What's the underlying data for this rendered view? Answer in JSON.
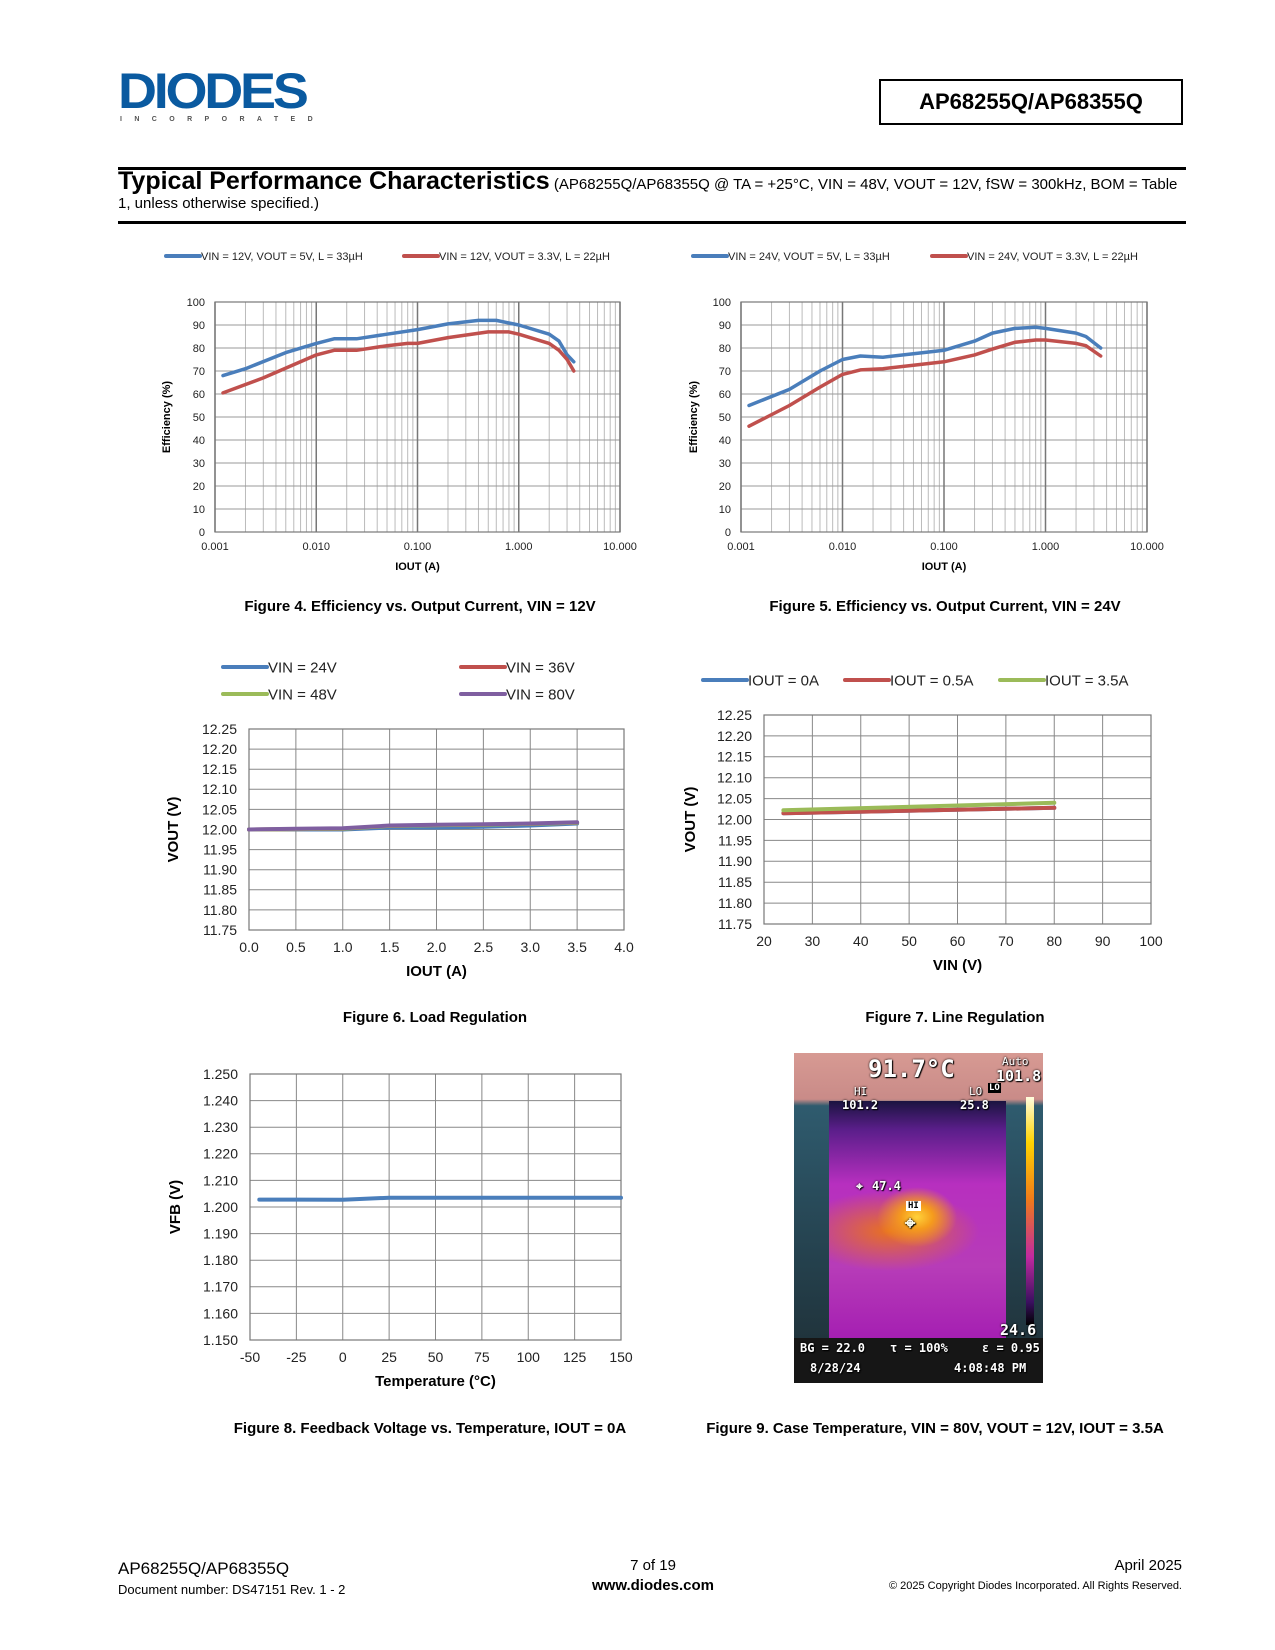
{
  "header": {
    "logo_text": "DIODES",
    "logo_subtext": "INCORPORATED",
    "part_number": "AP68255Q/AP68355Q"
  },
  "section": {
    "title": "Typical Performance Characteristics",
    "conditions": "(AP68255Q/AP68355Q @ TA = +25°C, VIN = 48V, VOUT = 12V, fSW = 300kHz, BOM = Table 1, unless otherwise specified.)"
  },
  "colors": {
    "blue": "#4a7ebb",
    "red": "#c0504d",
    "green": "#9bbb59",
    "purple": "#7f5fa0",
    "logo": "#0a5aa0"
  },
  "chart_data": [
    {
      "id": "fig4",
      "type": "line",
      "caption": "Figure 4. Efficiency vs. Output Current, VIN = 12V",
      "xlabel": "IOUT (A)",
      "ylabel": "Efficiency (%)",
      "xscale": "log",
      "xlim": [
        0.001,
        10
      ],
      "ylim": [
        0,
        100
      ],
      "xticks": [
        "0.001",
        "0.010",
        "0.100",
        "1.000",
        "10.000"
      ],
      "yticks": [
        "0",
        "10",
        "20",
        "30",
        "40",
        "50",
        "60",
        "70",
        "80",
        "90",
        "100"
      ],
      "grid": true,
      "legend": "top",
      "series": [
        {
          "name": "VIN = 12V, VOUT = 5V, L = 33µH",
          "color": "#4a7ebb",
          "x": [
            0.0012,
            0.002,
            0.005,
            0.01,
            0.015,
            0.025,
            0.05,
            0.1,
            0.2,
            0.4,
            0.6,
            1.0,
            2.0,
            2.5,
            3.0,
            3.5
          ],
          "y": [
            68,
            71,
            78,
            82,
            84,
            84,
            86,
            88,
            90.5,
            92,
            92,
            90,
            86,
            83,
            77,
            74
          ]
        },
        {
          "name": "VIN = 12V, VOUT = 3.3V, L = 22µH",
          "color": "#c0504d",
          "x": [
            0.0012,
            0.003,
            0.01,
            0.015,
            0.025,
            0.05,
            0.08,
            0.1,
            0.2,
            0.5,
            0.8,
            1.0,
            2.0,
            2.5,
            3.0,
            3.5
          ],
          "y": [
            60.5,
            67,
            77,
            79,
            79,
            81,
            82,
            82,
            84.5,
            87,
            87,
            86,
            82,
            79,
            75,
            70
          ]
        }
      ]
    },
    {
      "id": "fig5",
      "type": "line",
      "caption": "Figure 5. Efficiency vs. Output Current, VIN = 24V",
      "xlabel": "IOUT (A)",
      "ylabel": "Efficiency (%)",
      "xscale": "log",
      "xlim": [
        0.001,
        10
      ],
      "ylim": [
        0,
        100
      ],
      "xticks": [
        "0.001",
        "0.010",
        "0.100",
        "1.000",
        "10.000"
      ],
      "yticks": [
        "0",
        "10",
        "20",
        "30",
        "40",
        "50",
        "60",
        "70",
        "80",
        "90",
        "100"
      ],
      "grid": true,
      "legend": "top",
      "series": [
        {
          "name": "VIN = 24V, VOUT = 5V, L = 33µH",
          "color": "#4a7ebb",
          "x": [
            0.0012,
            0.003,
            0.006,
            0.01,
            0.015,
            0.025,
            0.05,
            0.1,
            0.2,
            0.3,
            0.5,
            0.8,
            1.0,
            2.0,
            2.5,
            3.5
          ],
          "y": [
            55,
            62,
            70,
            75,
            76.5,
            76,
            77.5,
            79,
            83,
            86.5,
            88.5,
            89,
            88.5,
            86.5,
            85,
            80
          ]
        },
        {
          "name": "VIN = 24V, VOUT = 3.3V, L = 22µH",
          "color": "#c0504d",
          "x": [
            0.0012,
            0.003,
            0.006,
            0.01,
            0.015,
            0.025,
            0.05,
            0.1,
            0.2,
            0.3,
            0.5,
            0.8,
            1.0,
            2.0,
            2.5,
            3.5
          ],
          "y": [
            46,
            55,
            63,
            68.5,
            70.5,
            71,
            72.5,
            74,
            77,
            79.5,
            82.5,
            83.5,
            83.5,
            82,
            81,
            76.5
          ]
        }
      ]
    },
    {
      "id": "fig6",
      "type": "line",
      "caption": "Figure 6. Load Regulation",
      "xlabel": "IOUT (A)",
      "ylabel": "VOUT (V)",
      "xscale": "linear",
      "xlim": [
        0,
        4
      ],
      "ylim": [
        11.75,
        12.25
      ],
      "xticks": [
        "0.0",
        "0.5",
        "1.0",
        "1.5",
        "2.0",
        "2.5",
        "3.0",
        "3.5",
        "4.0"
      ],
      "yticks": [
        "11.75",
        "11.80",
        "11.85",
        "11.90",
        "11.95",
        "12.00",
        "12.05",
        "12.10",
        "12.15",
        "12.20",
        "12.25"
      ],
      "grid": true,
      "legend": "top",
      "series": [
        {
          "name": "VIN = 24V",
          "color": "#4a7ebb",
          "x": [
            0,
            0.5,
            1,
            1.5,
            2,
            2.5,
            3,
            3.5
          ],
          "y": [
            12.0,
            12.0,
            12.0,
            12.005,
            12.005,
            12.007,
            12.01,
            12.015
          ]
        },
        {
          "name": "VIN = 36V",
          "color": "#c0504d",
          "x": [
            0,
            0.5,
            1,
            1.5,
            2,
            2.5,
            3,
            3.5
          ],
          "y": [
            12.0,
            12.001,
            12.002,
            12.009,
            12.011,
            12.012,
            12.014,
            12.017
          ]
        },
        {
          "name": "VIN = 48V",
          "color": "#9bbb59",
          "x": [
            0,
            0.5,
            1,
            1.5,
            2,
            2.5,
            3,
            3.5
          ],
          "y": [
            12.0,
            12.001,
            12.002,
            12.009,
            12.011,
            12.012,
            12.014,
            12.017
          ]
        },
        {
          "name": "VIN = 80V",
          "color": "#7f5fa0",
          "x": [
            0,
            0.5,
            1,
            1.5,
            2,
            2.5,
            3,
            3.5
          ],
          "y": [
            12.0,
            12.002,
            12.003,
            12.01,
            12.012,
            12.013,
            12.015,
            12.018
          ]
        }
      ]
    },
    {
      "id": "fig7",
      "type": "line",
      "caption": "Figure 7. Line Regulation",
      "xlabel": "VIN (V)",
      "ylabel": "VOUT (V)",
      "xscale": "linear",
      "xlim": [
        20,
        100
      ],
      "ylim": [
        11.75,
        12.25
      ],
      "xticks": [
        "20",
        "30",
        "40",
        "50",
        "60",
        "70",
        "80",
        "90",
        "100"
      ],
      "yticks": [
        "11.75",
        "11.80",
        "11.85",
        "11.90",
        "11.95",
        "12.00",
        "12.05",
        "12.10",
        "12.15",
        "12.20",
        "12.25"
      ],
      "grid": true,
      "legend": "top",
      "series": [
        {
          "name": "IOUT = 0A",
          "color": "#4a7ebb",
          "x": [
            24,
            80
          ],
          "y": [
            12.015,
            12.028
          ]
        },
        {
          "name": "IOUT = 0.5A",
          "color": "#c0504d",
          "x": [
            24,
            80
          ],
          "y": [
            12.015,
            12.028
          ]
        },
        {
          "name": "IOUT = 3.5A",
          "color": "#9bbb59",
          "x": [
            24,
            80
          ],
          "y": [
            12.022,
            12.04
          ]
        }
      ]
    },
    {
      "id": "fig8",
      "type": "line",
      "caption": "Figure 8. Feedback Voltage vs. Temperature, IOUT = 0A",
      "xlabel": "Temperature (°C)",
      "ylabel": "VFB (V)",
      "xscale": "linear",
      "xlim": [
        -50,
        150
      ],
      "ylim": [
        1.15,
        1.25
      ],
      "xticks": [
        "-50",
        "-25",
        "0",
        "25",
        "50",
        "75",
        "100",
        "125",
        "150"
      ],
      "yticks": [
        "1.150",
        "1.160",
        "1.170",
        "1.180",
        "1.190",
        "1.200",
        "1.210",
        "1.220",
        "1.230",
        "1.240",
        "1.250"
      ],
      "grid": true,
      "legend": "none",
      "series": [
        {
          "color": "#4a7ebb",
          "x": [
            -45,
            -25,
            0,
            25,
            50,
            75,
            100,
            125,
            150
          ],
          "y": [
            1.2028,
            1.2028,
            1.2027,
            1.2035,
            1.2035,
            1.2035,
            1.2035,
            1.2035,
            1.2035
          ]
        }
      ]
    }
  ],
  "thermal_image": {
    "caption": "Figure 9. Case Temperature, VIN = 80V, VOUT = 12V, IOUT = 3.5A",
    "center_temp": "91.7°C",
    "mode": "Auto",
    "scale_max": "101.8",
    "scale_min": "24.6",
    "hi_label": "HI",
    "hi_value": "101.2",
    "lo_label": "LO",
    "lo_value": "25.8",
    "marker_value": "47.4",
    "hi_marker": "HI",
    "lo_marker": "LO",
    "bg": "BG = 22.0",
    "tau": "τ = 100%",
    "emissivity": "ε = 0.95",
    "date": "8/28/24",
    "time": "4:08:48 PM"
  },
  "footer": {
    "part": "AP68255Q/AP68355Q",
    "doc_number": "Document number: DS47151 Rev. 1 - 2",
    "page": "7 of 19",
    "website": "www.diodes.com",
    "date": "April 2025",
    "copyright": "© 2025 Copyright Diodes Incorporated. All Rights Reserved."
  }
}
